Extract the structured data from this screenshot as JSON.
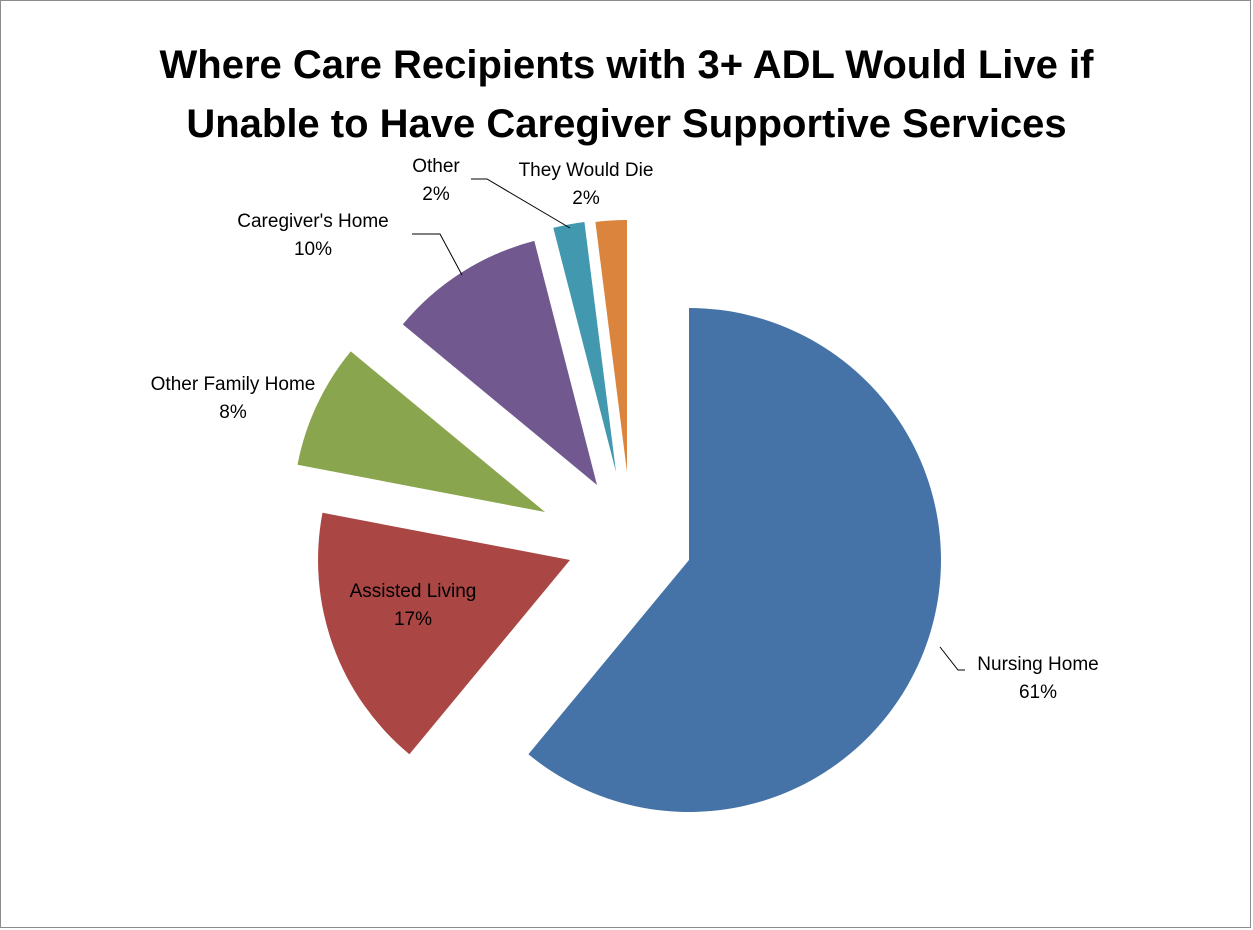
{
  "chart_data": {
    "type": "pie",
    "title_lines": [
      "Where Care Recipients with 3+ ADL Would Live if",
      "Unable to Have Caregiver Supportive Services"
    ],
    "slices": [
      {
        "name": "Nursing Home",
        "value": 61,
        "label": "61%",
        "color": "#4572a7"
      },
      {
        "name": "Assisted Living",
        "value": 17,
        "label": "17%",
        "color": "#aa4643"
      },
      {
        "name": "Other Family Home",
        "value": 8,
        "label": "8%",
        "color": "#89a54e"
      },
      {
        "name": "Caregiver's Home",
        "value": 10,
        "label": "10%",
        "color": "#71588f"
      },
      {
        "name": "Other",
        "value": 2,
        "label": "2%",
        "color": "#4198af"
      },
      {
        "name": "They Would Die",
        "value": 2,
        "label": "2%",
        "color": "#db843d"
      }
    ],
    "exploded": true,
    "legend": "none"
  }
}
